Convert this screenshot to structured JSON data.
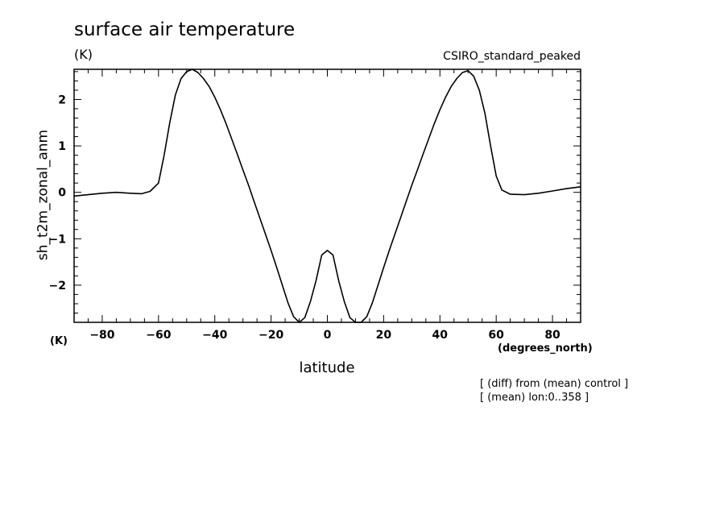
{
  "chart_data": {
    "type": "line",
    "title": "surface air temperature",
    "units": "(K)",
    "subtitle": "CSIRO_standard_peaked",
    "xlabel": "latitude",
    "xunits": "(degrees_north)",
    "ylabel": "sh_t2m_zonal_anm",
    "yunits": "(K)",
    "notes": [
      "[ (diff) from (mean) control ]",
      "[ (mean) lon:0..358 ]"
    ],
    "xlim": [
      -90,
      90
    ],
    "ylim": [
      -2.8,
      2.65
    ],
    "xticks": [
      -80,
      -60,
      -40,
      -20,
      0,
      20,
      40,
      60,
      80
    ],
    "yticks": [
      -2,
      -1,
      0,
      1,
      2
    ],
    "series": [
      {
        "x": [
          -90,
          -85,
          -80,
          -75,
          -70,
          -66,
          -63,
          -60,
          -58,
          -56,
          -54,
          -52,
          -50,
          -48,
          -46,
          -44,
          -42,
          -40,
          -38,
          -36,
          -34,
          -32,
          -30,
          -28,
          -26,
          -24,
          -22,
          -20,
          -18,
          -16,
          -14,
          -12,
          -10,
          -8,
          -6,
          -4,
          -2,
          0,
          2,
          4,
          6,
          8,
          10,
          12,
          14,
          16,
          18,
          20,
          22,
          24,
          26,
          28,
          30,
          32,
          34,
          36,
          38,
          40,
          42,
          44,
          46,
          48,
          50,
          52,
          54,
          56,
          58,
          60,
          62,
          65,
          70,
          75,
          80,
          85,
          90
        ],
        "y": [
          -0.08,
          -0.05,
          -0.02,
          0.0,
          -0.02,
          -0.03,
          0.02,
          0.2,
          0.8,
          1.5,
          2.1,
          2.45,
          2.6,
          2.65,
          2.58,
          2.45,
          2.28,
          2.05,
          1.78,
          1.48,
          1.15,
          0.82,
          0.48,
          0.15,
          -0.2,
          -0.55,
          -0.9,
          -1.25,
          -1.62,
          -2.0,
          -2.38,
          -2.68,
          -2.82,
          -2.7,
          -2.35,
          -1.9,
          -1.35,
          -1.25,
          -1.35,
          -1.9,
          -2.35,
          -2.7,
          -2.82,
          -2.8,
          -2.68,
          -2.38,
          -2.0,
          -1.62,
          -1.25,
          -0.9,
          -0.55,
          -0.2,
          0.15,
          0.48,
          0.82,
          1.15,
          1.48,
          1.78,
          2.05,
          2.28,
          2.45,
          2.58,
          2.62,
          2.5,
          2.2,
          1.7,
          1.0,
          0.35,
          0.05,
          -0.04,
          -0.05,
          -0.02,
          0.03,
          0.08,
          0.12
        ]
      }
    ]
  }
}
